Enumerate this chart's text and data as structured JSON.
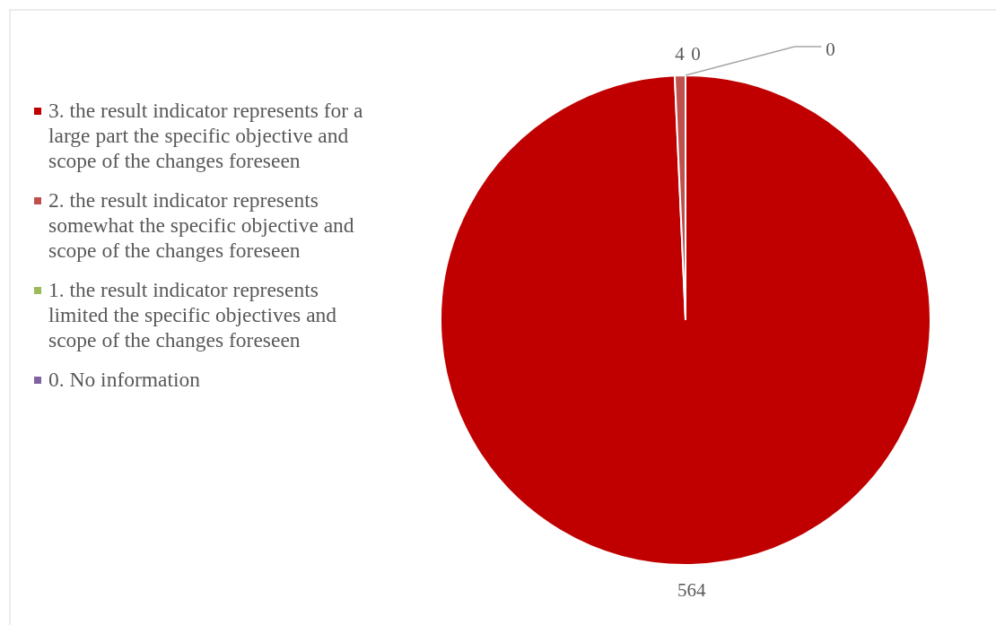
{
  "chart_data": {
    "type": "pie",
    "categories": [
      "3. the result indicator represents for a large part the specific objective and scope of the changes foreseen",
      "2. the result indicator represents somewhat the specific objective and scope of the changes foreseen",
      "1. the result indicator represents limited the specific objectives and scope of the changes foreseen",
      "0. No information"
    ],
    "values": [
      564,
      4,
      0,
      0
    ],
    "colors": [
      "#c00000",
      "#c0504d",
      "#9bbb59",
      "#8064a2"
    ],
    "value_labels": [
      "564",
      "4",
      "0",
      "0"
    ],
    "legend": "left"
  }
}
